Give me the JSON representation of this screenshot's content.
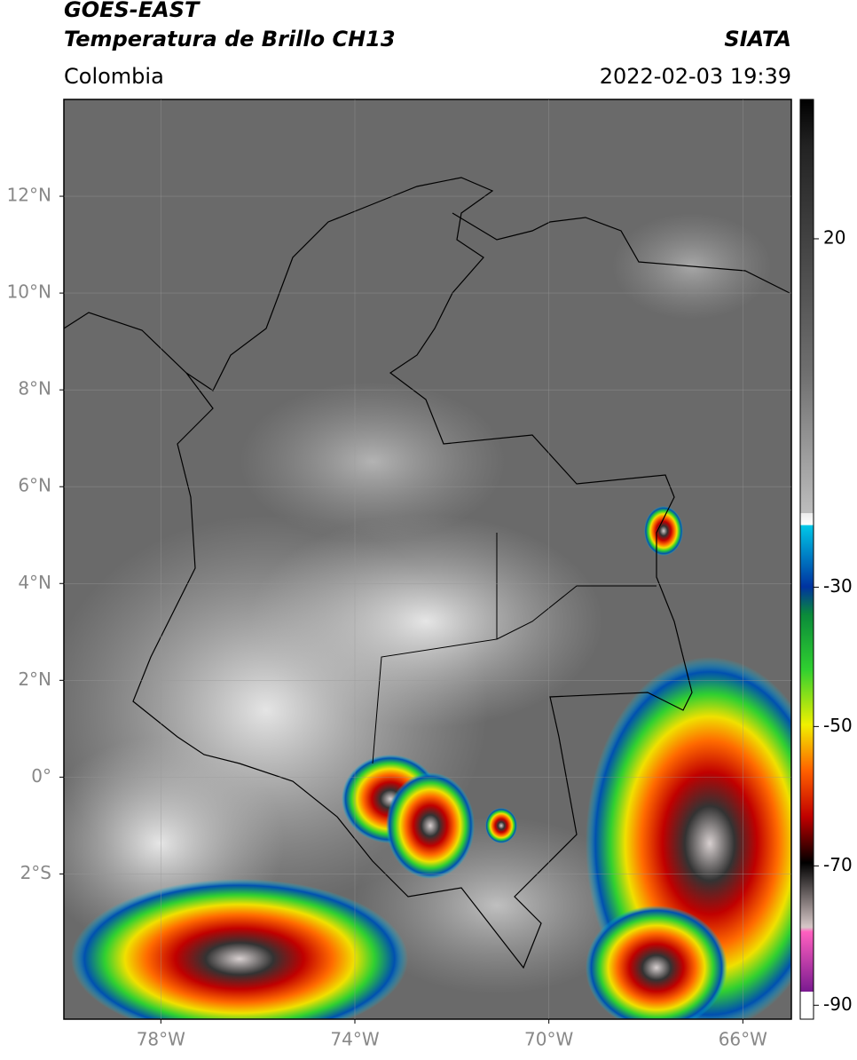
{
  "header": {
    "title_line1": "GOES-EAST",
    "title_line2": "Temperatura de Brillo CH13",
    "region": "Colombia",
    "source": "SIATA",
    "datetime": "2022-02-03 19:39"
  },
  "map": {
    "xlim": [
      -80,
      -65
    ],
    "ylim": [
      -5,
      14
    ],
    "lat_ticks": [
      {
        "value": 12,
        "label": "12°N"
      },
      {
        "value": 10,
        "label": "10°N"
      },
      {
        "value": 8,
        "label": "8°N"
      },
      {
        "value": 6,
        "label": "6°N"
      },
      {
        "value": 4,
        "label": "4°N"
      },
      {
        "value": 2,
        "label": "2°N"
      },
      {
        "value": 0,
        "label": "0°"
      },
      {
        "value": -2,
        "label": "2°S"
      }
    ],
    "lon_ticks": [
      {
        "value": -78,
        "label": "78°W"
      },
      {
        "value": -74,
        "label": "74°W"
      },
      {
        "value": -70,
        "label": "70°W"
      },
      {
        "value": -66,
        "label": "66°W"
      }
    ],
    "grid": true
  },
  "colorbar": {
    "clim": [
      -92,
      40
    ],
    "ticks": [
      20,
      -30,
      -50,
      -70,
      -90
    ]
  }
}
